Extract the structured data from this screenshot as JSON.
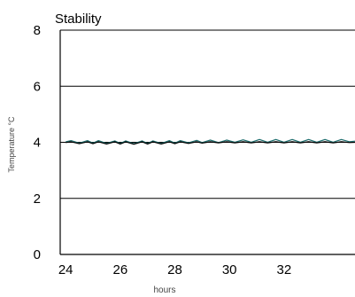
{
  "chart_data": {
    "type": "line",
    "title": "Stability",
    "xlabel": "hours",
    "ylabel": "Temperature °C",
    "xlim": [
      23.8,
      34.6
    ],
    "ylim": [
      0,
      8
    ],
    "x_ticks": [
      24,
      26,
      28,
      30,
      32
    ],
    "y_ticks": [
      0,
      2,
      4,
      6,
      8
    ],
    "grid": "horizontal",
    "series": [
      {
        "color": "#1f6f6f",
        "x": [
          24.0,
          24.2,
          24.5,
          24.8,
          25.0,
          25.2,
          25.5,
          25.8,
          26.0,
          26.2,
          26.5,
          26.8,
          27.0,
          27.2,
          27.5,
          27.8,
          28.0,
          28.2,
          28.5,
          28.8,
          29.0,
          29.3,
          29.6,
          29.9,
          30.2,
          30.5,
          30.8,
          31.1,
          31.4,
          31.7,
          32.0,
          32.3,
          32.6,
          32.9,
          33.2,
          33.5,
          33.8,
          34.1,
          34.4,
          34.6
        ],
        "values": [
          4.02,
          4.06,
          3.97,
          4.06,
          3.97,
          4.06,
          3.96,
          4.05,
          3.96,
          4.05,
          3.95,
          4.05,
          3.96,
          4.05,
          3.96,
          4.06,
          3.97,
          4.06,
          3.98,
          4.07,
          3.99,
          4.08,
          3.99,
          4.08,
          4.0,
          4.09,
          4.0,
          4.1,
          4.0,
          4.1,
          4.0,
          4.1,
          4.0,
          4.1,
          4.0,
          4.1,
          4.0,
          4.1,
          4.02,
          4.04
        ]
      },
      {
        "color": "#000000",
        "x": [
          24.0,
          24.2,
          24.5,
          24.8,
          25.0,
          25.2,
          25.5,
          25.8,
          26.0,
          26.2,
          26.5,
          26.8,
          27.0,
          27.2,
          27.5,
          27.8,
          28.0,
          28.2,
          28.5,
          28.8,
          29.0,
          29.3,
          29.6,
          29.9,
          30.2,
          30.5,
          30.8,
          31.1,
          31.4,
          31.7,
          32.0,
          32.3,
          32.6,
          32.9,
          33.2,
          33.5,
          33.8,
          34.1,
          34.4,
          34.6
        ],
        "values": [
          3.99,
          4.02,
          3.95,
          4.02,
          3.95,
          4.02,
          3.94,
          4.02,
          3.94,
          4.02,
          3.93,
          4.02,
          3.94,
          4.02,
          3.94,
          4.02,
          3.95,
          4.02,
          3.96,
          4.02,
          3.97,
          4.02,
          3.98,
          4.02,
          3.98,
          4.02,
          3.98,
          4.02,
          3.98,
          4.02,
          3.98,
          4.02,
          3.98,
          4.02,
          3.98,
          4.02,
          3.98,
          4.02,
          3.99,
          4.0
        ]
      }
    ]
  }
}
